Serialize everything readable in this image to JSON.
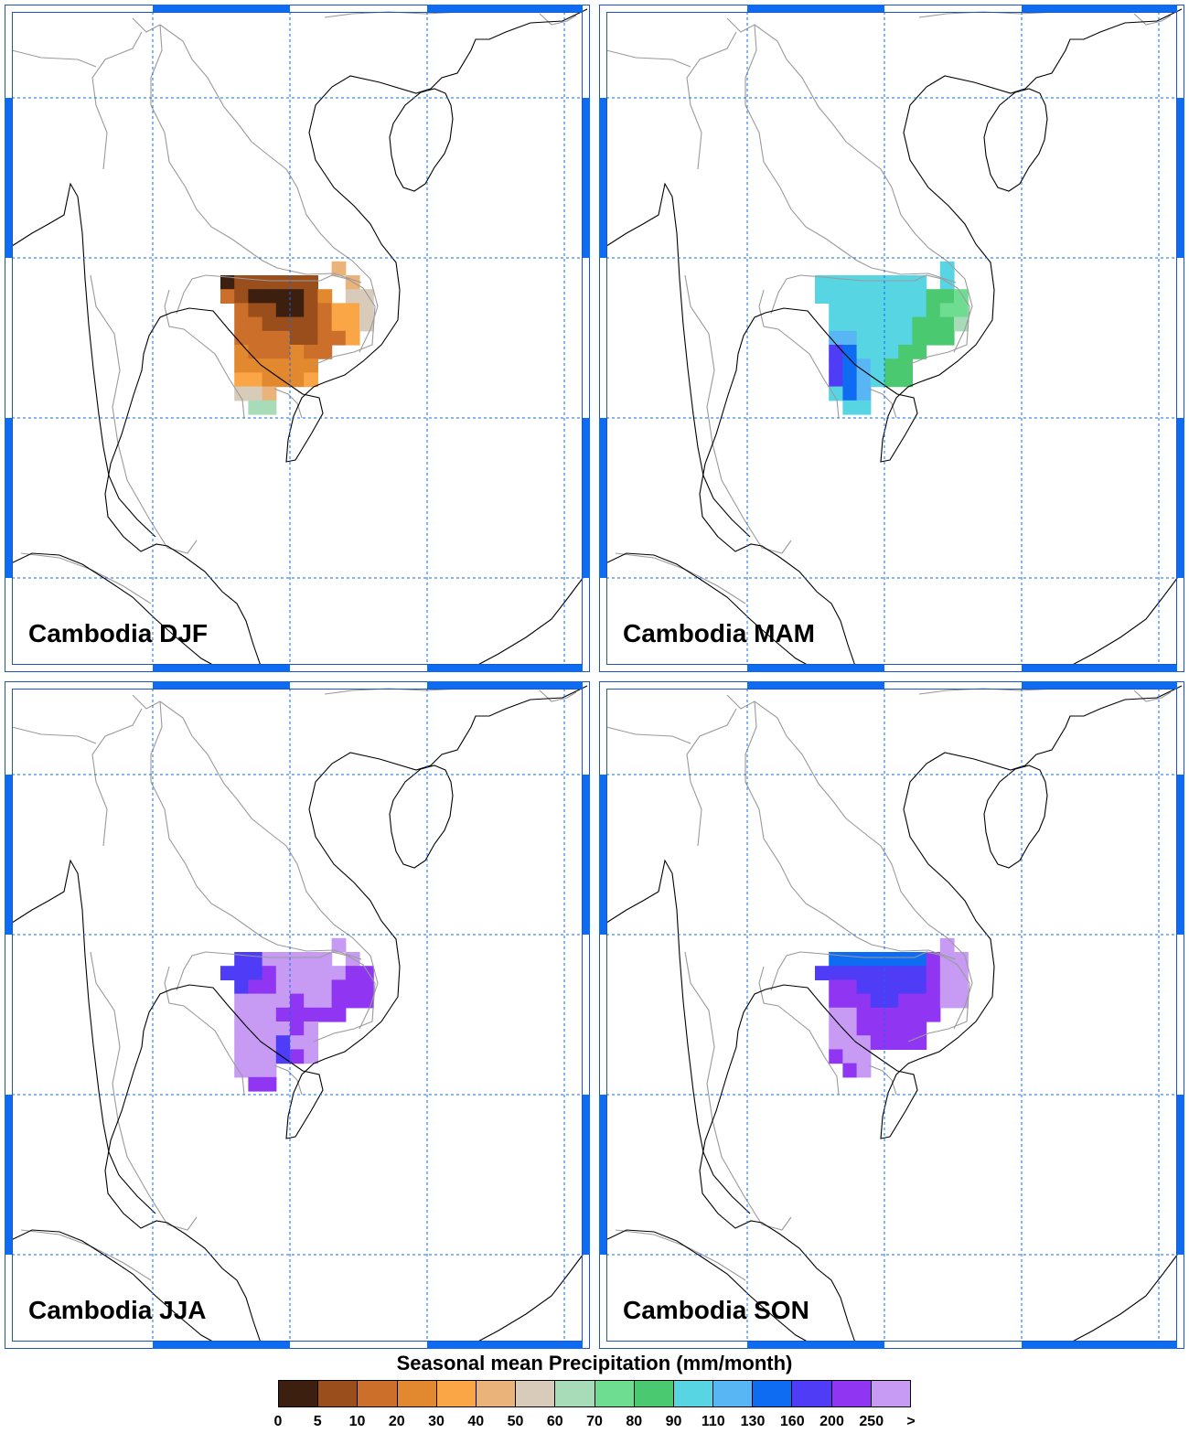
{
  "legend": {
    "title": "Seasonal mean Precipitation (mm/month)",
    "labels": [
      "0",
      "5",
      "10",
      "20",
      "30",
      "40",
      "50",
      "60",
      "70",
      "80",
      "90",
      "110",
      "130",
      "160",
      "200",
      "250",
      ">"
    ],
    "colors": [
      "#3c1f0f",
      "#9a4e1c",
      "#cc6f2a",
      "#e2892f",
      "#fba646",
      "#eab37a",
      "#d8cbba",
      "#a8dcb8",
      "#6fdd91",
      "#4bc970",
      "#58d5e3",
      "#58b6f4",
      "#0d6cf2",
      "#4e3cf6",
      "#9036f3",
      "#c79af3"
    ]
  },
  "panels": [
    {
      "title": "Cambodia DJF",
      "cells": [
        [
          0,
          1,
          1,
          1,
          1,
          1,
          1,
          null,
          null,
          5,
          null
        ],
        [
          2,
          1,
          0,
          0,
          0,
          0,
          1,
          3,
          null,
          6,
          6
        ],
        [
          null,
          2,
          1,
          1,
          0,
          0,
          1,
          2,
          4,
          4,
          6
        ],
        [
          null,
          2,
          2,
          1,
          1,
          1,
          1,
          2,
          4,
          4,
          6
        ],
        [
          null,
          2,
          2,
          2,
          2,
          1,
          1,
          2,
          2,
          4,
          null
        ],
        [
          null,
          3,
          2,
          2,
          2,
          3,
          2,
          2,
          null,
          null,
          null
        ],
        [
          null,
          3,
          3,
          3,
          3,
          3,
          3,
          null,
          null,
          null,
          null
        ],
        [
          null,
          4,
          4,
          3,
          3,
          3,
          4,
          null,
          null,
          null,
          null
        ],
        [
          null,
          6,
          6,
          5,
          null,
          null,
          null,
          null,
          null,
          null,
          null
        ],
        [
          null,
          null,
          7,
          7,
          null,
          null,
          null,
          null,
          null,
          null,
          null
        ]
      ],
      "top_cells": [
        [
          8,
          5
        ]
      ]
    },
    {
      "title": "Cambodia MAM",
      "cells": [
        [
          10,
          10,
          10,
          10,
          10,
          10,
          10,
          10,
          null,
          10,
          null
        ],
        [
          10,
          10,
          10,
          10,
          10,
          10,
          10,
          10,
          9,
          9,
          8
        ],
        [
          null,
          10,
          10,
          10,
          10,
          10,
          10,
          10,
          9,
          8,
          8
        ],
        [
          null,
          10,
          10,
          10,
          10,
          10,
          10,
          9,
          9,
          9,
          7
        ],
        [
          null,
          11,
          11,
          10,
          10,
          10,
          10,
          9,
          9,
          9,
          null
        ],
        [
          null,
          13,
          12,
          10,
          10,
          10,
          9,
          9,
          null,
          null,
          null
        ],
        [
          null,
          13,
          12,
          11,
          10,
          9,
          9,
          null,
          null,
          null,
          null
        ],
        [
          null,
          13,
          12,
          11,
          10,
          9,
          9,
          null,
          null,
          null,
          null
        ],
        [
          null,
          10,
          12,
          11,
          null,
          null,
          null,
          null,
          null,
          null,
          null
        ],
        [
          null,
          null,
          10,
          10,
          null,
          null,
          null,
          null,
          null,
          null,
          null
        ]
      ],
      "top_cells": [
        [
          9,
          10
        ]
      ]
    },
    {
      "title": "Cambodia JJA",
      "cells": [
        [
          null,
          13,
          13,
          15,
          15,
          15,
          15,
          15,
          null,
          15,
          null
        ],
        [
          13,
          13,
          13,
          14,
          15,
          15,
          15,
          15,
          15,
          14,
          14
        ],
        [
          null,
          13,
          14,
          14,
          15,
          15,
          15,
          15,
          14,
          14,
          14
        ],
        [
          null,
          15,
          15,
          15,
          15,
          14,
          15,
          15,
          14,
          14,
          14
        ],
        [
          null,
          15,
          15,
          15,
          14,
          14,
          14,
          14,
          14,
          null,
          null
        ],
        [
          null,
          15,
          15,
          15,
          15,
          14,
          15,
          null,
          null,
          null,
          null
        ],
        [
          null,
          15,
          15,
          15,
          13,
          15,
          15,
          null,
          null,
          null,
          null
        ],
        [
          null,
          15,
          15,
          15,
          13,
          14,
          15,
          null,
          null,
          null,
          null
        ],
        [
          null,
          15,
          15,
          15,
          null,
          null,
          null,
          null,
          null,
          null,
          null
        ],
        [
          null,
          null,
          14,
          14,
          null,
          null,
          null,
          null,
          null,
          null,
          null
        ]
      ],
      "top_cells": [
        [
          8,
          15
        ]
      ]
    },
    {
      "title": "Cambodia SON",
      "cells": [
        [
          null,
          12,
          12,
          12,
          12,
          12,
          12,
          12,
          14,
          15,
          15
        ],
        [
          13,
          13,
          13,
          13,
          13,
          13,
          13,
          13,
          14,
          15,
          15
        ],
        [
          null,
          14,
          14,
          13,
          13,
          13,
          13,
          13,
          14,
          15,
          15
        ],
        [
          null,
          14,
          14,
          14,
          13,
          13,
          14,
          14,
          14,
          15,
          15
        ],
        [
          null,
          15,
          15,
          14,
          14,
          14,
          14,
          14,
          14,
          null,
          null
        ],
        [
          null,
          15,
          15,
          14,
          14,
          14,
          14,
          14,
          null,
          null,
          null
        ],
        [
          null,
          15,
          15,
          15,
          14,
          14,
          14,
          14,
          null,
          null,
          null
        ],
        [
          null,
          14,
          15,
          15,
          null,
          null,
          null,
          null,
          null,
          null,
          null
        ],
        [
          null,
          null,
          14,
          15,
          null,
          null,
          null,
          null,
          null,
          null,
          null
        ]
      ],
      "top_cells": [
        [
          9,
          15
        ]
      ]
    }
  ]
}
